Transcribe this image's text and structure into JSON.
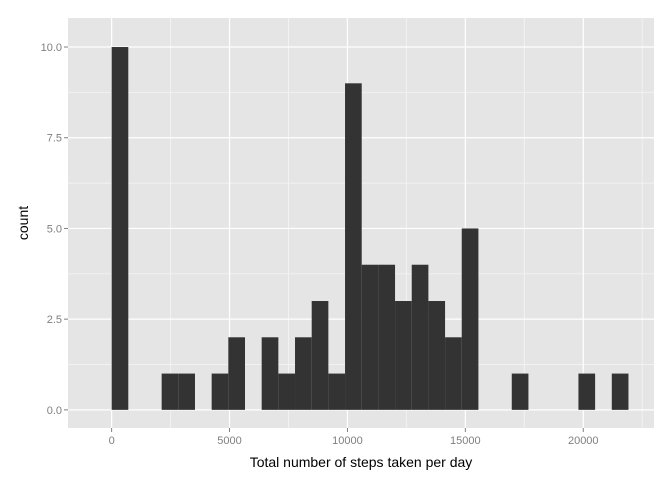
{
  "chart_data": {
    "type": "bar",
    "title": "",
    "xlabel": "Total number of steps taken per day",
    "ylabel": "count",
    "xlim": [
      -1850,
      23000
    ],
    "ylim": [
      -0.5,
      10.8
    ],
    "x_ticks": [
      0,
      5000,
      10000,
      15000,
      20000
    ],
    "x_tick_labels": [
      "0",
      "5000",
      "10000",
      "15000",
      "20000"
    ],
    "y_ticks": [
      0,
      2.5,
      5,
      7.5,
      10
    ],
    "y_tick_labels": [
      "0.0",
      "2.5",
      "5.0",
      "7.5",
      "10.0"
    ],
    "grid": true,
    "bin_width": 707,
    "bins": [
      {
        "x0": 0,
        "x1": 707,
        "count": 10
      },
      {
        "x0": 2121,
        "x1": 2828,
        "count": 1
      },
      {
        "x0": 2828,
        "x1": 3535,
        "count": 1
      },
      {
        "x0": 4242,
        "x1": 4949,
        "count": 1
      },
      {
        "x0": 4949,
        "x1": 5656,
        "count": 2
      },
      {
        "x0": 6363,
        "x1": 7070,
        "count": 2
      },
      {
        "x0": 7070,
        "x1": 7777,
        "count": 1
      },
      {
        "x0": 7777,
        "x1": 8484,
        "count": 2
      },
      {
        "x0": 8484,
        "x1": 9191,
        "count": 3
      },
      {
        "x0": 9191,
        "x1": 9898,
        "count": 1
      },
      {
        "x0": 9898,
        "x1": 10605,
        "count": 9
      },
      {
        "x0": 10605,
        "x1": 11312,
        "count": 4
      },
      {
        "x0": 11312,
        "x1": 12019,
        "count": 4
      },
      {
        "x0": 12019,
        "x1": 12726,
        "count": 3
      },
      {
        "x0": 12726,
        "x1": 13433,
        "count": 4
      },
      {
        "x0": 13433,
        "x1": 14140,
        "count": 3
      },
      {
        "x0": 14140,
        "x1": 14847,
        "count": 2
      },
      {
        "x0": 14847,
        "x1": 15554,
        "count": 5
      },
      {
        "x0": 16968,
        "x1": 17675,
        "count": 1
      },
      {
        "x0": 19796,
        "x1": 20503,
        "count": 1
      },
      {
        "x0": 21210,
        "x1": 21917,
        "count": 1
      }
    ],
    "colors": {
      "panel_background": "#e5e5e5",
      "grid_major": "#ffffff",
      "grid_minor": "#f2f2f2",
      "bar_fill": "#333333",
      "tick_text": "#7f7f7f",
      "axis_title_text": "#000000"
    }
  }
}
